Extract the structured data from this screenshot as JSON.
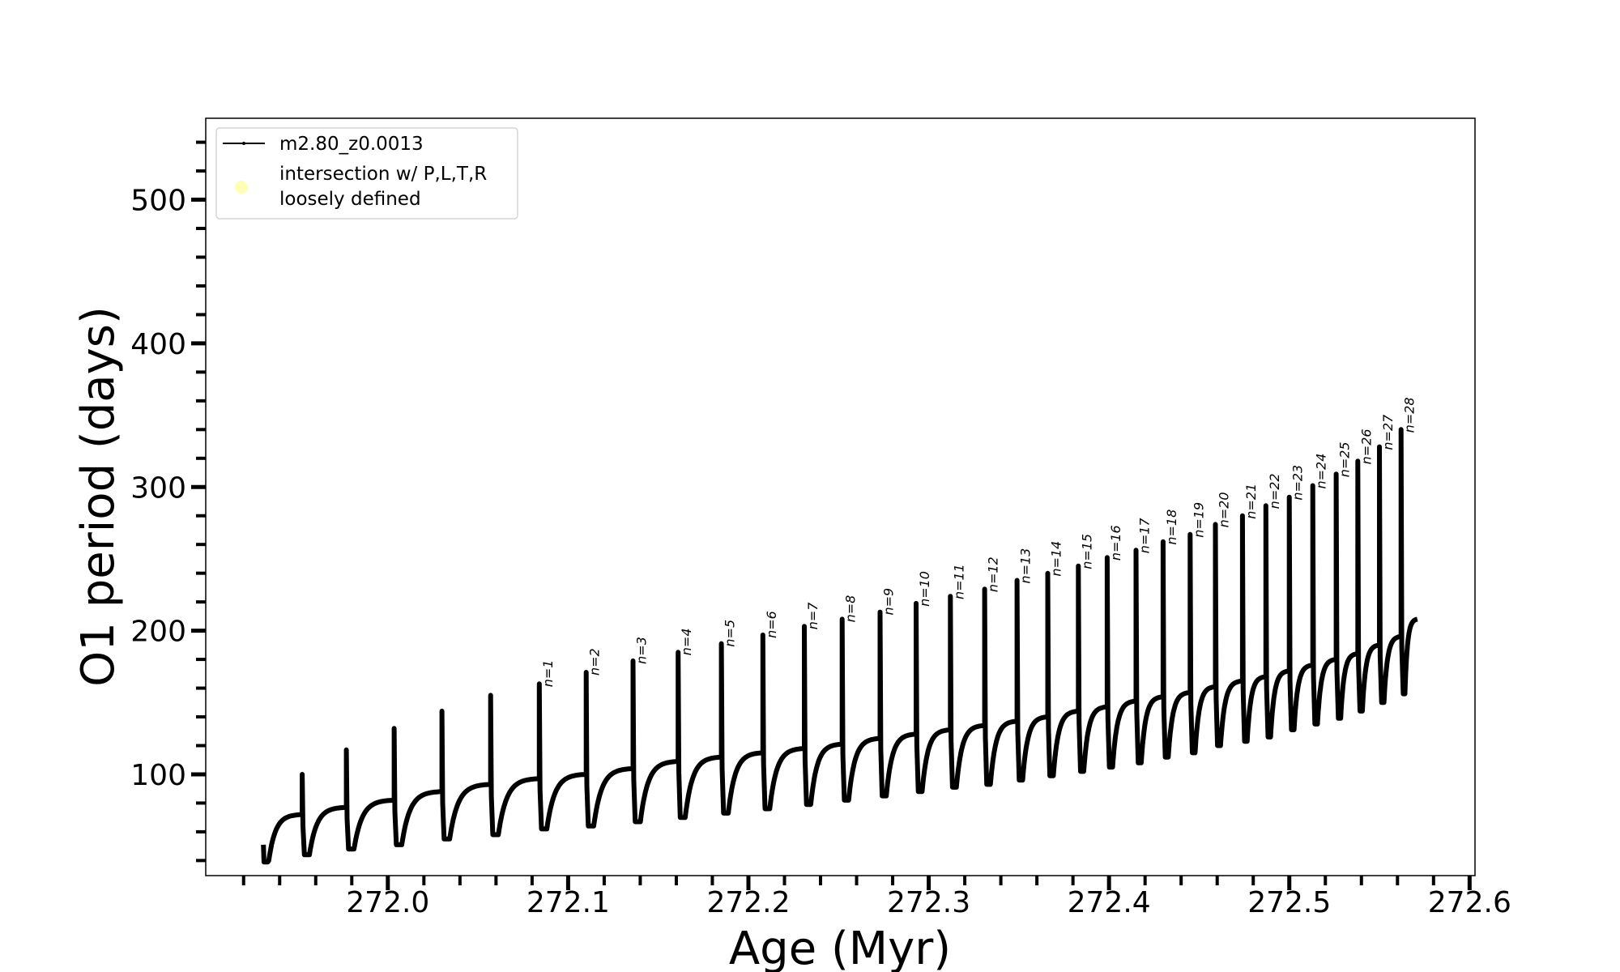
{
  "chart_data": {
    "type": "line",
    "xlabel": "Age (Myr)",
    "ylabel": "O1 period (days)",
    "xlim": [
      271.899,
      272.603
    ],
    "ylim": [
      29.5,
      556.7
    ],
    "xticks": [
      272.0,
      272.1,
      272.2,
      272.3,
      272.4,
      272.5,
      272.6
    ],
    "xtick_labels": [
      "272.0",
      "272.1",
      "272.2",
      "272.3",
      "272.4",
      "272.5",
      "272.6"
    ],
    "x_minor_step": 0.02,
    "yticks": [
      100,
      200,
      300,
      400,
      500
    ],
    "ytick_labels": [
      "100",
      "200",
      "300",
      "400",
      "500"
    ],
    "y_minor_step": 20,
    "grid": false,
    "legend": {
      "placement": "upper-left",
      "entries": [
        {
          "label": "m2.80_z0.0013",
          "color": "#000000",
          "style": "line-with-dot"
        },
        {
          "label_line1": "intersection w/ P,L,T,R",
          "label_line2": "loosely defined",
          "color": "#ffffb3",
          "style": "circle-marker"
        }
      ]
    },
    "series": [
      {
        "name": "m2.80_z0.0013",
        "color": "#000000",
        "start": {
          "age": 271.931,
          "period": 51,
          "min": 39
        },
        "end": {
          "age": 272.571,
          "period": 208
        },
        "spikes": [
          {
            "age": 271.9525,
            "plateau": 72,
            "peak": 100,
            "dip": 44,
            "label": ""
          },
          {
            "age": 271.977,
            "plateau": 77,
            "peak": 117,
            "dip": 48,
            "label": ""
          },
          {
            "age": 272.0035,
            "plateau": 82,
            "peak": 132,
            "dip": 51,
            "label": ""
          },
          {
            "age": 272.03,
            "plateau": 88,
            "peak": 144,
            "dip": 55,
            "label": ""
          },
          {
            "age": 272.057,
            "plateau": 93,
            "peak": 155,
            "dip": 58,
            "label": ""
          },
          {
            "age": 272.084,
            "plateau": 97,
            "peak": 163,
            "dip": 62,
            "label": "n=1"
          },
          {
            "age": 272.11,
            "plateau": 100,
            "peak": 171,
            "dip": 64,
            "label": "n=2"
          },
          {
            "age": 272.136,
            "plateau": 104,
            "peak": 179,
            "dip": 67,
            "label": "n=3"
          },
          {
            "age": 272.161,
            "plateau": 109,
            "peak": 185,
            "dip": 70,
            "label": "n=4"
          },
          {
            "age": 272.185,
            "plateau": 112,
            "peak": 191,
            "dip": 73,
            "label": "n=5"
          },
          {
            "age": 272.208,
            "plateau": 115,
            "peak": 197,
            "dip": 76,
            "label": "n=6"
          },
          {
            "age": 272.231,
            "plateau": 118,
            "peak": 203,
            "dip": 79,
            "label": "n=7"
          },
          {
            "age": 272.252,
            "plateau": 121,
            "peak": 208,
            "dip": 82,
            "label": "n=8"
          },
          {
            "age": 272.273,
            "plateau": 125,
            "peak": 213,
            "dip": 85,
            "label": "n=9"
          },
          {
            "age": 272.293,
            "plateau": 128,
            "peak": 219,
            "dip": 88,
            "label": "n=10"
          },
          {
            "age": 272.312,
            "plateau": 131,
            "peak": 224,
            "dip": 91,
            "label": "n=11"
          },
          {
            "age": 272.331,
            "plateau": 134,
            "peak": 229,
            "dip": 93,
            "label": "n=12"
          },
          {
            "age": 272.349,
            "plateau": 137,
            "peak": 235,
            "dip": 96,
            "label": "n=13"
          },
          {
            "age": 272.366,
            "plateau": 140,
            "peak": 240,
            "dip": 99,
            "label": "n=14"
          },
          {
            "age": 272.383,
            "plateau": 144,
            "peak": 245,
            "dip": 102,
            "label": "n=15"
          },
          {
            "age": 272.399,
            "plateau": 147,
            "peak": 251,
            "dip": 105,
            "label": "n=16"
          },
          {
            "age": 272.415,
            "plateau": 151,
            "peak": 256,
            "dip": 108,
            "label": "n=17"
          },
          {
            "age": 272.43,
            "plateau": 154,
            "peak": 262,
            "dip": 112,
            "label": "n=18"
          },
          {
            "age": 272.445,
            "plateau": 157,
            "peak": 267,
            "dip": 115,
            "label": "n=19"
          },
          {
            "age": 272.459,
            "plateau": 161,
            "peak": 274,
            "dip": 120,
            "label": "n=20"
          },
          {
            "age": 272.474,
            "plateau": 165,
            "peak": 280,
            "dip": 123,
            "label": "n=21"
          },
          {
            "age": 272.487,
            "plateau": 168,
            "peak": 287,
            "dip": 126,
            "label": "n=22"
          },
          {
            "age": 272.5,
            "plateau": 172,
            "peak": 293,
            "dip": 131,
            "label": "n=23"
          },
          {
            "age": 272.513,
            "plateau": 176,
            "peak": 301,
            "dip": 135,
            "label": "n=24"
          },
          {
            "age": 272.526,
            "plateau": 180,
            "peak": 309,
            "dip": 139,
            "label": "n=25"
          },
          {
            "age": 272.538,
            "plateau": 184,
            "peak": 318,
            "dip": 144,
            "label": "n=26"
          },
          {
            "age": 272.55,
            "plateau": 190,
            "peak": 328,
            "dip": 150,
            "label": "n=27"
          },
          {
            "age": 272.562,
            "plateau": 196,
            "peak": 340,
            "dip": 156,
            "label": "n=28"
          }
        ]
      }
    ]
  }
}
